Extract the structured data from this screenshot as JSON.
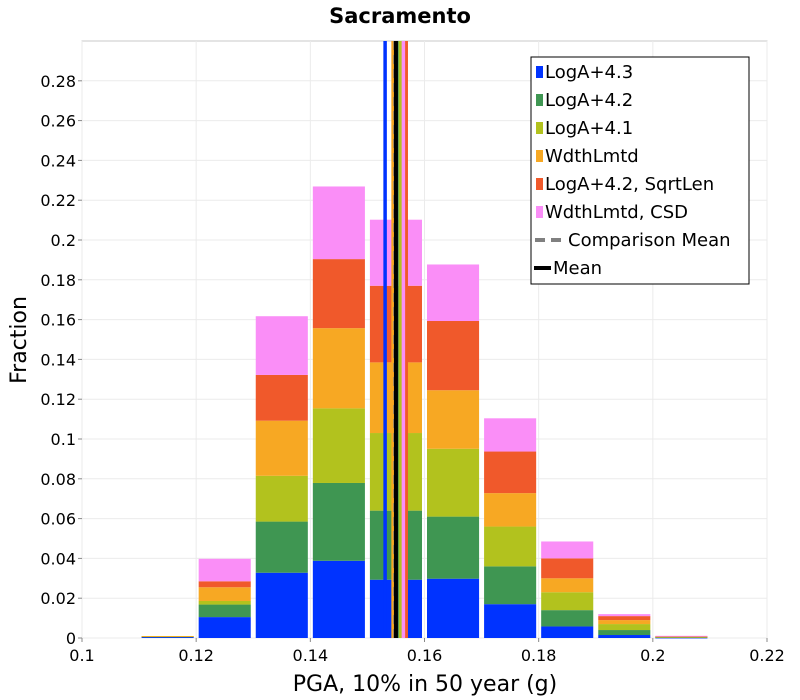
{
  "chart_data": {
    "type": "bar",
    "stacked": true,
    "title": "Sacramento",
    "xlabel": "PGA, 10% in 50 year (g)",
    "ylabel": "Fraction",
    "xlim": [
      0.1,
      0.22
    ],
    "ylim": [
      0,
      0.3
    ],
    "xticks": [
      0.1,
      0.12,
      0.14,
      0.16,
      0.18,
      0.2,
      0.22
    ],
    "xtick_labels": [
      "0.1",
      "0.12",
      "0.14",
      "0.16",
      "0.18",
      "0.2",
      "0.22"
    ],
    "yticks": [
      0,
      0.02,
      0.04,
      0.06,
      0.08,
      0.1,
      0.12,
      0.14,
      0.16,
      0.18,
      0.2,
      0.22,
      0.24,
      0.26,
      0.28
    ],
    "ytick_labels": [
      "0",
      "0.02",
      "0.04",
      "0.06",
      "0.08",
      "0.1",
      "0.12",
      "0.14",
      "0.16",
      "0.18",
      "0.2",
      "0.22",
      "0.24",
      "0.26",
      "0.28"
    ],
    "grid": true,
    "bin_width": 0.01,
    "bin_centers": [
      0.115,
      0.125,
      0.135,
      0.145,
      0.155,
      0.165,
      0.175,
      0.185,
      0.195,
      0.205
    ],
    "series": [
      {
        "name": "LogA+4.3",
        "color": "#0033ff",
        "values": [
          0.0005,
          0.0105,
          0.0328,
          0.0388,
          0.0293,
          0.0298,
          0.017,
          0.0058,
          0.0015,
          0.0002
        ]
      },
      {
        "name": "LogA+4.2",
        "color": "#3f9652",
        "values": [
          0.0003,
          0.0063,
          0.0257,
          0.0391,
          0.0347,
          0.0312,
          0.019,
          0.0082,
          0.0025,
          0.0002
        ]
      },
      {
        "name": "LogA+4.1",
        "color": "#b2c21e",
        "values": [
          0.0001,
          0.0018,
          0.023,
          0.0375,
          0.039,
          0.0341,
          0.02,
          0.009,
          0.003,
          0.0002
        ]
      },
      {
        "name": "WdthLmtd",
        "color": "#f7a823",
        "values": [
          0.0001,
          0.0069,
          0.0277,
          0.0403,
          0.0355,
          0.0294,
          0.0168,
          0.007,
          0.002,
          0.0002
        ]
      },
      {
        "name": "LogA+4.2, SqrtLen",
        "color": "#f0592b",
        "values": [
          0.0,
          0.003,
          0.023,
          0.0347,
          0.0385,
          0.0348,
          0.0209,
          0.01,
          0.002,
          0.0002
        ]
      },
      {
        "name": "WdthLmtd, CSD",
        "color": "#fa8ef7",
        "values": [
          0.0,
          0.0113,
          0.0295,
          0.0365,
          0.0332,
          0.0284,
          0.0167,
          0.0085,
          0.001,
          0.0001
        ]
      }
    ],
    "vertical_lines": [
      {
        "series": "LogA+4.3",
        "x": 0.1531,
        "color": "#0033ff",
        "style": "solid"
      },
      {
        "series": "LogA+4.2",
        "x": 0.1552,
        "color": "#3f9652",
        "style": "solid"
      },
      {
        "series": "LogA+4.1",
        "x": 0.1558,
        "color": "#b2c21e",
        "style": "solid"
      },
      {
        "series": "WdthLmtd",
        "x": 0.1545,
        "color": "#f7a823",
        "style": "solid"
      },
      {
        "series": "LogA+4.2, SqrtLen",
        "x": 0.1568,
        "color": "#f0592b",
        "style": "solid"
      },
      {
        "series": "WdthLmtd, CSD",
        "x": 0.1563,
        "color": "#fa8ef7",
        "style": "solid"
      },
      {
        "series": "Comparison Mean",
        "x": 0.1548,
        "color": "#808080",
        "style": "dashed"
      },
      {
        "series": "Mean",
        "x": 0.155,
        "color": "#000000",
        "style": "solid"
      }
    ],
    "legend": {
      "position": "top-right",
      "entries": [
        {
          "label": "LogA+4.3",
          "color": "#0033ff",
          "kind": "box"
        },
        {
          "label": "LogA+4.2",
          "color": "#3f9652",
          "kind": "box"
        },
        {
          "label": "LogA+4.1",
          "color": "#b2c21e",
          "kind": "box"
        },
        {
          "label": "WdthLmtd",
          "color": "#f7a823",
          "kind": "box"
        },
        {
          "label": "LogA+4.2, SqrtLen",
          "color": "#f0592b",
          "kind": "box"
        },
        {
          "label": "WdthLmtd, CSD",
          "color": "#fa8ef7",
          "kind": "box"
        },
        {
          "label": "Comparison Mean",
          "color": "#808080",
          "kind": "dashed-line"
        },
        {
          "label": "Mean",
          "color": "#000000",
          "kind": "line"
        }
      ]
    }
  }
}
